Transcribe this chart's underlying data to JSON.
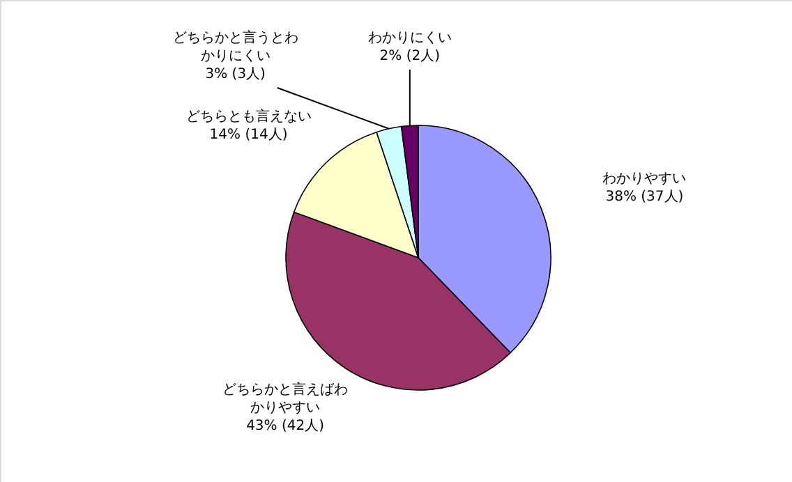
{
  "chart_data": {
    "type": "pie",
    "categories": [
      "わかりやすい",
      "どちらかと言えばわかりやすい",
      "どちらとも言えない",
      "どちらかと言うとわかりにくい",
      "わかりにくい"
    ],
    "values": [
      37,
      42,
      14,
      3,
      2
    ],
    "value_labels": [
      "38% (37人)",
      "43% (42人)",
      "14% (14人)",
      "3% (3人)",
      "2% (2人)"
    ],
    "colors": [
      "#9999ff",
      "#993366",
      "#ffffcc",
      "#ccffff",
      "#660066"
    ]
  }
}
